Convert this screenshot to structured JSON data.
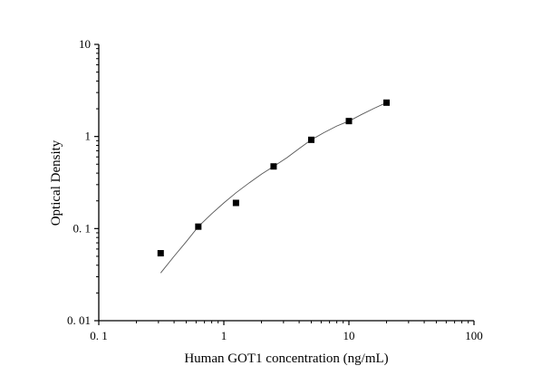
{
  "chart_data": {
    "type": "scatter",
    "xlabel": "Human GOT1 concentration (ng/mL)",
    "ylabel": "Optical Density",
    "xscale": "log",
    "yscale": "log",
    "xlim": [
      0.1,
      100
    ],
    "ylim": [
      0.01,
      10
    ],
    "xticks": [
      "0. 1",
      "1",
      "10",
      "100"
    ],
    "yticks": [
      "0. 01",
      "0. 1",
      "1",
      "10"
    ],
    "grid": false,
    "points": {
      "x": [
        0.3125,
        0.625,
        1.25,
        2.5,
        5,
        10,
        20
      ],
      "y": [
        0.054,
        0.105,
        0.19,
        0.473,
        0.92,
        1.47,
        2.33
      ]
    },
    "fit_curve": {
      "x": [
        0.3125,
        0.4,
        0.5,
        0.625,
        0.8,
        1,
        1.25,
        1.6,
        2,
        2.5,
        3.2,
        4,
        5,
        6.3,
        8,
        10,
        12.5,
        16,
        20
      ],
      "y": [
        0.033,
        0.05,
        0.072,
        0.105,
        0.145,
        0.19,
        0.245,
        0.315,
        0.39,
        0.473,
        0.59,
        0.74,
        0.92,
        1.1,
        1.3,
        1.47,
        1.72,
        2.03,
        2.33
      ]
    },
    "colors": {
      "marker": "#000000",
      "curve": "#555555",
      "axis": "#000000"
    }
  }
}
